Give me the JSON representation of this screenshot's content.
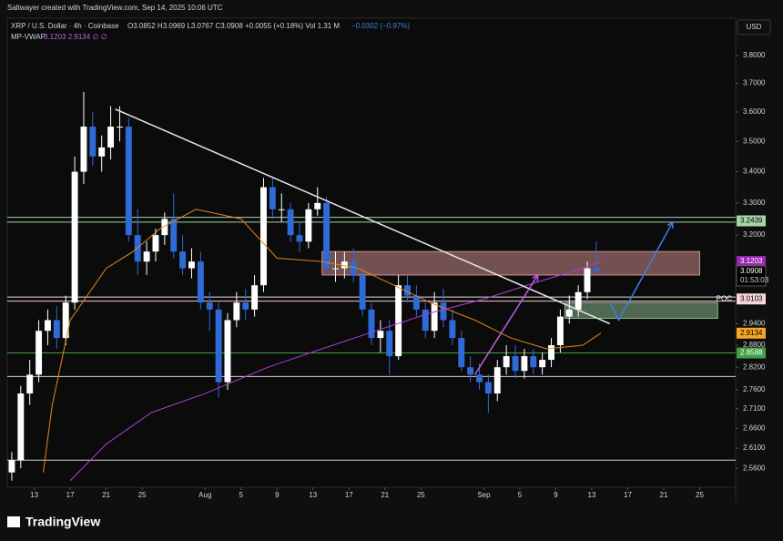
{
  "chart_data": {
    "type": "candlestick",
    "credit": "Saltwayer created with TradingView.com, Sep 14, 2025 10:06 UTC",
    "symbol": "XRP / U.S. Dollar · 4h · Coinbase",
    "ohlc_legend": "O3.0852 H3.0969 L3.0767 C3.0908 +0.0055 (+0.18%) Vol 1.31 M",
    "volume_change": "−0.0302 (−0.97%)",
    "indicator": "MP-VWAP",
    "indicator_values": "3.1203 2.9134 ∅ ∅",
    "currency": "USD",
    "brand": "TradingView",
    "log_scale": true,
    "up_color": "#ffffff",
    "down_color": "#2f6bd8",
    "xlim": [
      "2025-07-10",
      "2025-09-29"
    ],
    "ylim": [
      2.514,
      3.938
    ],
    "xticks": [
      {
        "value": "2025-07-13",
        "label": "13"
      },
      {
        "value": "2025-07-17",
        "label": "17"
      },
      {
        "value": "2025-07-21",
        "label": "21"
      },
      {
        "value": "2025-07-25",
        "label": "25"
      },
      {
        "value": "2025-08-01",
        "label": "Aug"
      },
      {
        "value": "2025-08-05",
        "label": "5"
      },
      {
        "value": "2025-08-09",
        "label": "9"
      },
      {
        "value": "2025-08-13",
        "label": "13"
      },
      {
        "value": "2025-08-17",
        "label": "17"
      },
      {
        "value": "2025-08-21",
        "label": "21"
      },
      {
        "value": "2025-08-25",
        "label": "25"
      },
      {
        "value": "2025-09-01",
        "label": "Sep"
      },
      {
        "value": "2025-09-05",
        "label": "5"
      },
      {
        "value": "2025-09-09",
        "label": "9"
      },
      {
        "value": "2025-09-13",
        "label": "13"
      },
      {
        "value": "2025-09-17",
        "label": "17"
      },
      {
        "value": "2025-09-21",
        "label": "21"
      },
      {
        "value": "2025-09-25",
        "label": "25"
      }
    ],
    "yticks": [
      {
        "value": 3.8,
        "label": "3.8000"
      },
      {
        "value": 3.7,
        "label": "3.7000"
      },
      {
        "value": 3.6,
        "label": "3.6000"
      },
      {
        "value": 3.5,
        "label": "3.5000"
      },
      {
        "value": 3.4,
        "label": "3.4000"
      },
      {
        "value": 3.3,
        "label": "3.3000"
      },
      {
        "value": 3.2,
        "label": "3.2000"
      },
      {
        "value": 2.94,
        "label": "2.9400"
      },
      {
        "value": 2.88,
        "label": "2.8800"
      },
      {
        "value": 2.82,
        "label": "2.8200"
      },
      {
        "value": 2.76,
        "label": "2.7600"
      },
      {
        "value": 2.71,
        "label": "2.7100"
      },
      {
        "value": 2.66,
        "label": "2.6600"
      },
      {
        "value": 2.61,
        "label": "2.6100"
      },
      {
        "value": 2.56,
        "label": "2.5600"
      }
    ],
    "x": [
      "2025-07-10",
      "2025-07-11",
      "2025-07-12",
      "2025-07-13",
      "2025-07-14",
      "2025-07-15",
      "2025-07-16",
      "2025-07-17",
      "2025-07-18",
      "2025-07-19",
      "2025-07-20",
      "2025-07-21",
      "2025-07-22",
      "2025-07-23",
      "2025-07-24",
      "2025-07-25",
      "2025-07-26",
      "2025-07-27",
      "2025-07-28",
      "2025-07-29",
      "2025-07-30",
      "2025-07-31",
      "2025-08-01",
      "2025-08-02",
      "2025-08-03",
      "2025-08-04",
      "2025-08-05",
      "2025-08-06",
      "2025-08-07",
      "2025-08-08",
      "2025-08-09",
      "2025-08-10",
      "2025-08-11",
      "2025-08-12",
      "2025-08-13",
      "2025-08-14",
      "2025-08-15",
      "2025-08-16",
      "2025-08-17",
      "2025-08-18",
      "2025-08-19",
      "2025-08-20",
      "2025-08-21",
      "2025-08-22",
      "2025-08-23",
      "2025-08-24",
      "2025-08-25",
      "2025-08-26",
      "2025-08-27",
      "2025-08-28",
      "2025-08-29",
      "2025-08-30",
      "2025-08-31",
      "2025-09-01",
      "2025-09-02",
      "2025-09-03",
      "2025-09-04",
      "2025-09-05",
      "2025-09-06",
      "2025-09-07",
      "2025-09-08",
      "2025-09-09",
      "2025-09-10",
      "2025-09-11",
      "2025-09-12",
      "2025-09-13"
    ],
    "open": [
      2.55,
      2.58,
      2.75,
      2.8,
      2.92,
      2.95,
      2.9,
      3.0,
      3.4,
      3.55,
      3.45,
      3.48,
      3.55,
      3.55,
      3.2,
      3.12,
      3.15,
      3.2,
      3.25,
      3.15,
      3.1,
      3.12,
      3.0,
      2.98,
      2.78,
      2.95,
      3.0,
      2.98,
      3.05,
      3.35,
      3.28,
      3.28,
      3.2,
      3.18,
      3.28,
      3.3,
      3.1,
      3.1,
      3.12,
      3.08,
      2.98,
      2.9,
      2.92,
      2.85,
      3.05,
      3.02,
      2.98,
      2.92,
      3.0,
      2.95,
      2.9,
      2.82,
      2.8,
      2.78,
      2.75,
      2.82,
      2.85,
      2.81,
      2.85,
      2.82,
      2.84,
      2.88,
      2.96,
      2.98,
      3.03,
      3.1
    ],
    "high": [
      2.6,
      2.77,
      2.84,
      2.95,
      2.98,
      2.99,
      3.02,
      3.45,
      3.67,
      3.6,
      3.52,
      3.62,
      3.62,
      3.58,
      3.28,
      3.18,
      3.22,
      3.27,
      3.33,
      3.2,
      3.16,
      3.15,
      3.03,
      3.0,
      2.97,
      3.03,
      3.04,
      3.08,
      3.38,
      3.38,
      3.33,
      3.3,
      3.24,
      3.3,
      3.35,
      3.32,
      3.15,
      3.15,
      3.16,
      3.1,
      3.0,
      2.95,
      2.95,
      3.08,
      3.08,
      3.05,
      3.0,
      3.03,
      3.04,
      2.98,
      2.92,
      2.85,
      2.83,
      2.8,
      2.84,
      2.88,
      2.88,
      2.87,
      2.87,
      2.86,
      2.9,
      2.98,
      3.02,
      3.05,
      3.12,
      3.18
    ],
    "low": [
      2.53,
      2.56,
      2.72,
      2.78,
      2.88,
      2.87,
      2.88,
      2.98,
      3.36,
      3.42,
      3.4,
      3.44,
      3.5,
      3.18,
      3.08,
      3.08,
      3.12,
      3.17,
      3.13,
      3.08,
      3.07,
      2.98,
      2.92,
      2.74,
      2.76,
      2.93,
      2.95,
      2.96,
      3.03,
      3.25,
      3.24,
      3.18,
      3.15,
      3.16,
      3.26,
      3.08,
      3.06,
      3.07,
      3.06,
      2.96,
      2.88,
      2.86,
      2.8,
      2.84,
      3.0,
      2.96,
      2.9,
      2.9,
      2.93,
      2.88,
      2.81,
      2.78,
      2.76,
      2.7,
      2.73,
      2.8,
      2.79,
      2.79,
      2.8,
      2.8,
      2.82,
      2.86,
      2.94,
      2.96,
      3.01,
      3.08
    ],
    "close": [
      2.58,
      2.75,
      2.8,
      2.92,
      2.95,
      2.9,
      3.0,
      3.4,
      3.55,
      3.45,
      3.48,
      3.55,
      3.55,
      3.2,
      3.12,
      3.15,
      3.2,
      3.25,
      3.15,
      3.1,
      3.12,
      3.0,
      2.98,
      2.78,
      2.95,
      3.0,
      2.98,
      3.05,
      3.35,
      3.28,
      3.28,
      3.2,
      3.18,
      3.28,
      3.3,
      3.1,
      3.1,
      3.12,
      3.08,
      2.98,
      2.9,
      2.92,
      2.85,
      3.05,
      3.02,
      2.98,
      2.92,
      3.0,
      2.95,
      2.9,
      2.82,
      2.8,
      2.78,
      2.75,
      2.82,
      2.85,
      2.81,
      2.85,
      2.82,
      2.84,
      2.88,
      2.96,
      2.98,
      3.03,
      3.1,
      3.0908
    ],
    "series": [
      {
        "name": "MP-VWAP 1",
        "color": "#e8871e",
        "x": [
          "2025-07-14",
          "2025-07-15",
          "2025-07-17",
          "2025-07-21",
          "2025-07-24",
          "2025-07-27",
          "2025-07-31",
          "2025-08-05",
          "2025-08-09",
          "2025-08-14",
          "2025-08-18",
          "2025-08-22",
          "2025-08-26",
          "2025-08-31",
          "2025-09-04",
          "2025-09-08",
          "2025-09-12",
          "2025-09-14"
        ],
        "values": [
          2.55,
          2.72,
          2.95,
          3.1,
          3.15,
          3.22,
          3.28,
          3.25,
          3.13,
          3.12,
          3.1,
          3.05,
          3.0,
          2.95,
          2.9,
          2.87,
          2.88,
          2.9134
        ]
      },
      {
        "name": "MP-VWAP 2",
        "color": "#b03dd6",
        "x": [
          "2025-07-17",
          "2025-07-21",
          "2025-07-26",
          "2025-08-01",
          "2025-08-08",
          "2025-08-14",
          "2025-08-20",
          "2025-08-26",
          "2025-09-01",
          "2025-09-07",
          "2025-09-12",
          "2025-09-14"
        ],
        "values": [
          2.53,
          2.62,
          2.7,
          2.75,
          2.82,
          2.87,
          2.92,
          2.97,
          3.01,
          3.06,
          3.1,
          3.1203
        ]
      }
    ],
    "hlines": {
      "values": [
        3.255,
        3.24,
        3.016,
        3.004,
        2.8588,
        2.795,
        2.58
      ],
      "colors": [
        "#a5d6a7",
        "#a5d6a7",
        "#e0e0e0",
        "#f3c4cf",
        "#43a047",
        "#d0d0d0",
        "#d0d0d0"
      ]
    },
    "zones": [
      {
        "x": [
          "2025-08-14",
          "2025-09-25"
        ],
        "y": [
          3.15,
          3.08
        ],
        "color": "#f4a6a6"
      },
      {
        "x": [
          "2025-09-10",
          "2025-09-27"
        ],
        "y": [
          3.0,
          2.955
        ],
        "color": "#a5d6a7"
      }
    ],
    "trendline": {
      "x": [
        "2025-07-22",
        "2025-09-15"
      ],
      "values": [
        3.61,
        2.94
      ],
      "color": "#e6e6e6"
    },
    "arrows": [
      {
        "x": [
          "2025-08-31",
          "2025-09-07"
        ],
        "values": [
          2.8,
          3.08
        ],
        "color": "#c05ee8"
      },
      {
        "x": [
          "2025-09-15",
          "2025-09-16",
          "2025-09-22"
        ],
        "values": [
          3.0,
          2.95,
          3.24
        ],
        "color": "#3d7fe0"
      }
    ],
    "price_labels": {
      "values": [
        3.2439,
        3.1203,
        3.0908,
        3.0103,
        2.9134,
        2.8588
      ],
      "backgrounds": [
        "#a5d6a7",
        "#9c27b0",
        "#000000",
        "#f8d7dc",
        "#f5a623",
        "#43a047"
      ],
      "text_colors": [
        "#000000",
        "#ffffff",
        "#ffffff",
        "#000000",
        "#000000",
        "#ffffff"
      ]
    },
    "countdown": "01:53:03",
    "poc_label": "POC"
  }
}
